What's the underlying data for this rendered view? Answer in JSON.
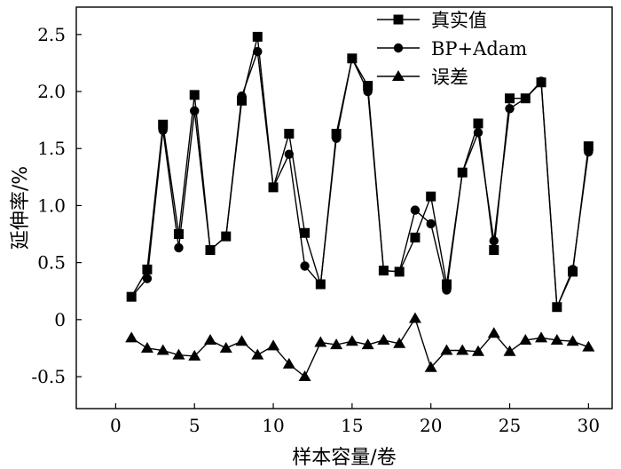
{
  "chart_data": {
    "type": "line",
    "xlabel": "样本容量/卷",
    "ylabel": "延伸率/%",
    "xlim": [
      -2.5,
      31.5
    ],
    "ylim": [
      -0.78,
      2.74
    ],
    "xticks": [
      0,
      5,
      10,
      15,
      20,
      25,
      30
    ],
    "yticks": [
      -0.5,
      0,
      0.5,
      1.0,
      1.5,
      2.0,
      2.5
    ],
    "ytick_labels": [
      "-0.5",
      "0",
      "0.5",
      "1.0",
      "1.5",
      "2.0",
      "2.5"
    ],
    "legend_position": "top-right",
    "grid": false,
    "x": [
      1,
      2,
      3,
      4,
      5,
      6,
      7,
      8,
      9,
      10,
      11,
      12,
      13,
      14,
      15,
      16,
      17,
      18,
      19,
      20,
      21,
      22,
      23,
      24,
      25,
      26,
      27,
      28,
      29,
      30
    ],
    "series": [
      {
        "name": "真实值",
        "marker": "square",
        "values": [
          0.2,
          0.44,
          1.71,
          0.75,
          1.97,
          0.61,
          0.73,
          1.92,
          2.48,
          1.16,
          1.63,
          0.76,
          0.31,
          1.63,
          2.29,
          2.05,
          0.43,
          0.42,
          0.72,
          1.08,
          0.31,
          1.29,
          1.72,
          0.61,
          1.94,
          1.94,
          2.08,
          0.11,
          0.42,
          1.52
        ]
      },
      {
        "name": "BP+Adam",
        "marker": "circle",
        "values": [
          0.2,
          0.36,
          1.66,
          0.63,
          1.83,
          0.61,
          0.73,
          1.96,
          2.35,
          1.16,
          1.45,
          0.47,
          0.31,
          1.59,
          2.29,
          2.0,
          0.43,
          0.42,
          0.96,
          0.84,
          0.26,
          1.29,
          1.64,
          0.69,
          1.85,
          1.94,
          2.09,
          0.11,
          0.44,
          1.47
        ]
      },
      {
        "name": "误差",
        "marker": "triangle",
        "values": [
          -0.16,
          -0.25,
          -0.27,
          -0.31,
          -0.32,
          -0.18,
          -0.25,
          -0.19,
          -0.31,
          -0.23,
          -0.39,
          -0.5,
          -0.2,
          -0.22,
          -0.19,
          -0.22,
          -0.18,
          -0.21,
          0.01,
          -0.42,
          -0.27,
          -0.27,
          -0.28,
          -0.12,
          -0.28,
          -0.18,
          -0.16,
          -0.18,
          -0.19,
          -0.24
        ]
      }
    ]
  }
}
